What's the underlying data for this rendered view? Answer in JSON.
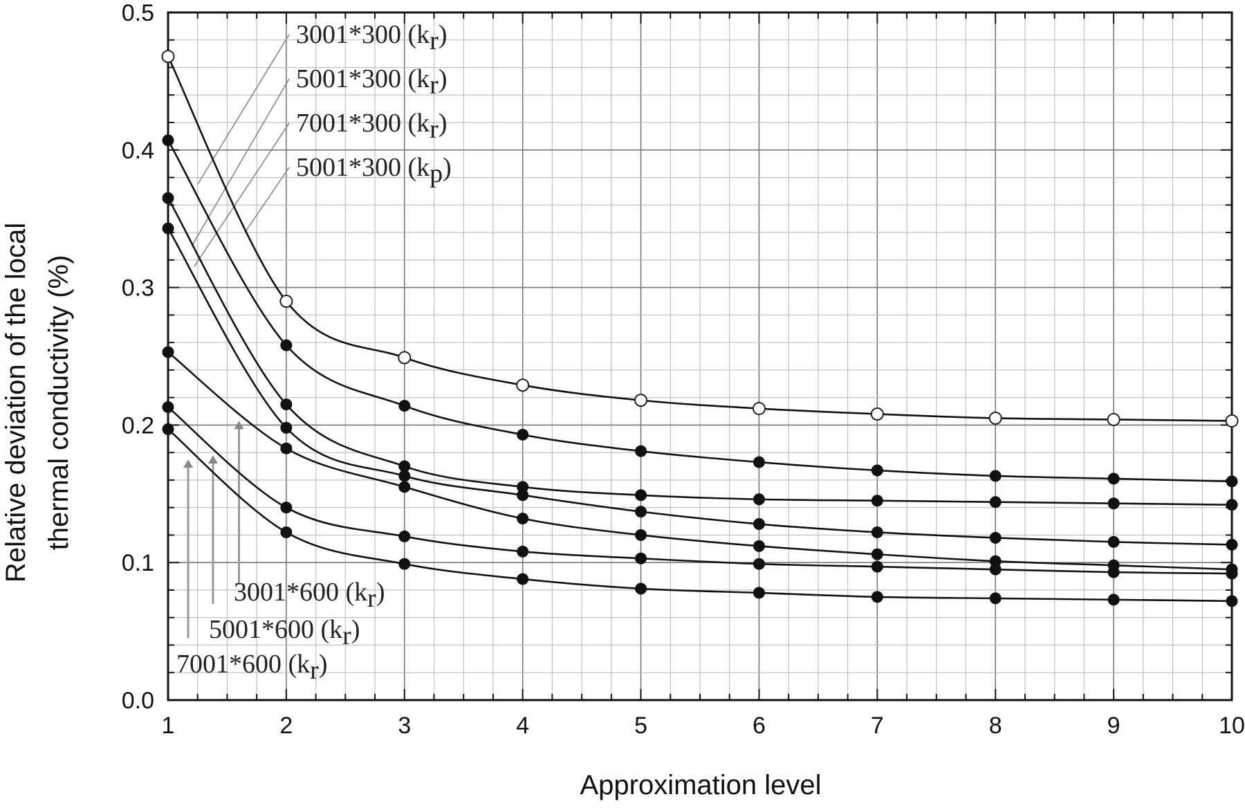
{
  "chart_data": {
    "type": "line",
    "title": "",
    "xlabel": "Approximation level",
    "ylabel_lines": [
      "Relative deviation of the local",
      "thermal conductivity (%)"
    ],
    "xlim": [
      1,
      10
    ],
    "ylim": [
      0.0,
      0.5
    ],
    "x_ticks": [
      1,
      2,
      3,
      4,
      5,
      6,
      7,
      8,
      9,
      10
    ],
    "x_tick_labels": [
      "1",
      "2",
      "3",
      "4",
      "5",
      "6",
      "7",
      "8",
      "9",
      "10"
    ],
    "y_ticks": [
      0.0,
      0.1,
      0.2,
      0.3,
      0.4,
      0.5
    ],
    "y_tick_labels": [
      "0.0",
      "0.1",
      "0.2",
      "0.3",
      "0.4",
      "0.5"
    ],
    "grid": true,
    "x": [
      1,
      2,
      3,
      4,
      5,
      6,
      7,
      8,
      9,
      10
    ],
    "series": [
      {
        "name": "3001*300 (kr)",
        "marker": "open-circle",
        "values": [
          0.468,
          0.29,
          0.249,
          0.229,
          0.218,
          0.212,
          0.208,
          0.205,
          0.204,
          0.203
        ]
      },
      {
        "name": "5001*300 (kr)",
        "marker": "filled-circle",
        "values": [
          0.407,
          0.258,
          0.214,
          0.193,
          0.181,
          0.173,
          0.167,
          0.163,
          0.161,
          0.159
        ]
      },
      {
        "name": "7001*300 (kr)",
        "marker": "filled-circle",
        "values": [
          0.365,
          0.215,
          0.17,
          0.155,
          0.149,
          0.146,
          0.145,
          0.144,
          0.143,
          0.142
        ]
      },
      {
        "name": "5001*300 (kp)",
        "marker": "filled-circle",
        "values": [
          0.343,
          0.198,
          0.163,
          0.149,
          0.137,
          0.128,
          0.122,
          0.118,
          0.115,
          0.113
        ]
      },
      {
        "name": "",
        "marker": "filled-circle",
        "values": [
          0.253,
          0.183,
          0.155,
          0.132,
          0.12,
          0.112,
          0.106,
          0.101,
          0.098,
          0.095
        ]
      },
      {
        "name": "",
        "marker": "filled-circle",
        "values": [
          0.213,
          0.14,
          0.119,
          0.108,
          0.103,
          0.099,
          0.097,
          0.095,
          0.093,
          0.092
        ]
      },
      {
        "name": "",
        "marker": "filled-circle",
        "values": [
          0.197,
          0.122,
          0.099,
          0.088,
          0.081,
          0.078,
          0.075,
          0.074,
          0.073,
          0.072
        ]
      }
    ],
    "annotations_top": [
      {
        "main": "3001*300 (k",
        "sub": "r",
        "tail": ")",
        "target_x": 1.25,
        "target_y": 0.375
      },
      {
        "main": "5001*300 (k",
        "sub": "r",
        "tail": ")",
        "target_x": 1.2,
        "target_y": 0.33
      },
      {
        "main": "7001*300 (k",
        "sub": "r",
        "tail": ")",
        "target_x": 1.22,
        "target_y": 0.315
      },
      {
        "main": "5001*300 (k",
        "sub": "p",
        "tail": ")",
        "target_x": 1.65,
        "target_y": 0.34
      }
    ],
    "annotations_bottom": [
      {
        "main": "3001*600 (k",
        "sub": "r",
        "tail": ")",
        "arrow_x": 1.6,
        "arrow_top": 0.203,
        "arrow_bottom": 0.084
      },
      {
        "main": "5001*600 (k",
        "sub": "r",
        "tail": ")",
        "arrow_x": 1.38,
        "arrow_top": 0.178,
        "arrow_bottom": 0.07
      },
      {
        "main": "7001*600 (k",
        "sub": "r",
        "tail": ")",
        "arrow_x": 1.17,
        "arrow_top": 0.175,
        "arrow_bottom": 0.045
      }
    ]
  }
}
